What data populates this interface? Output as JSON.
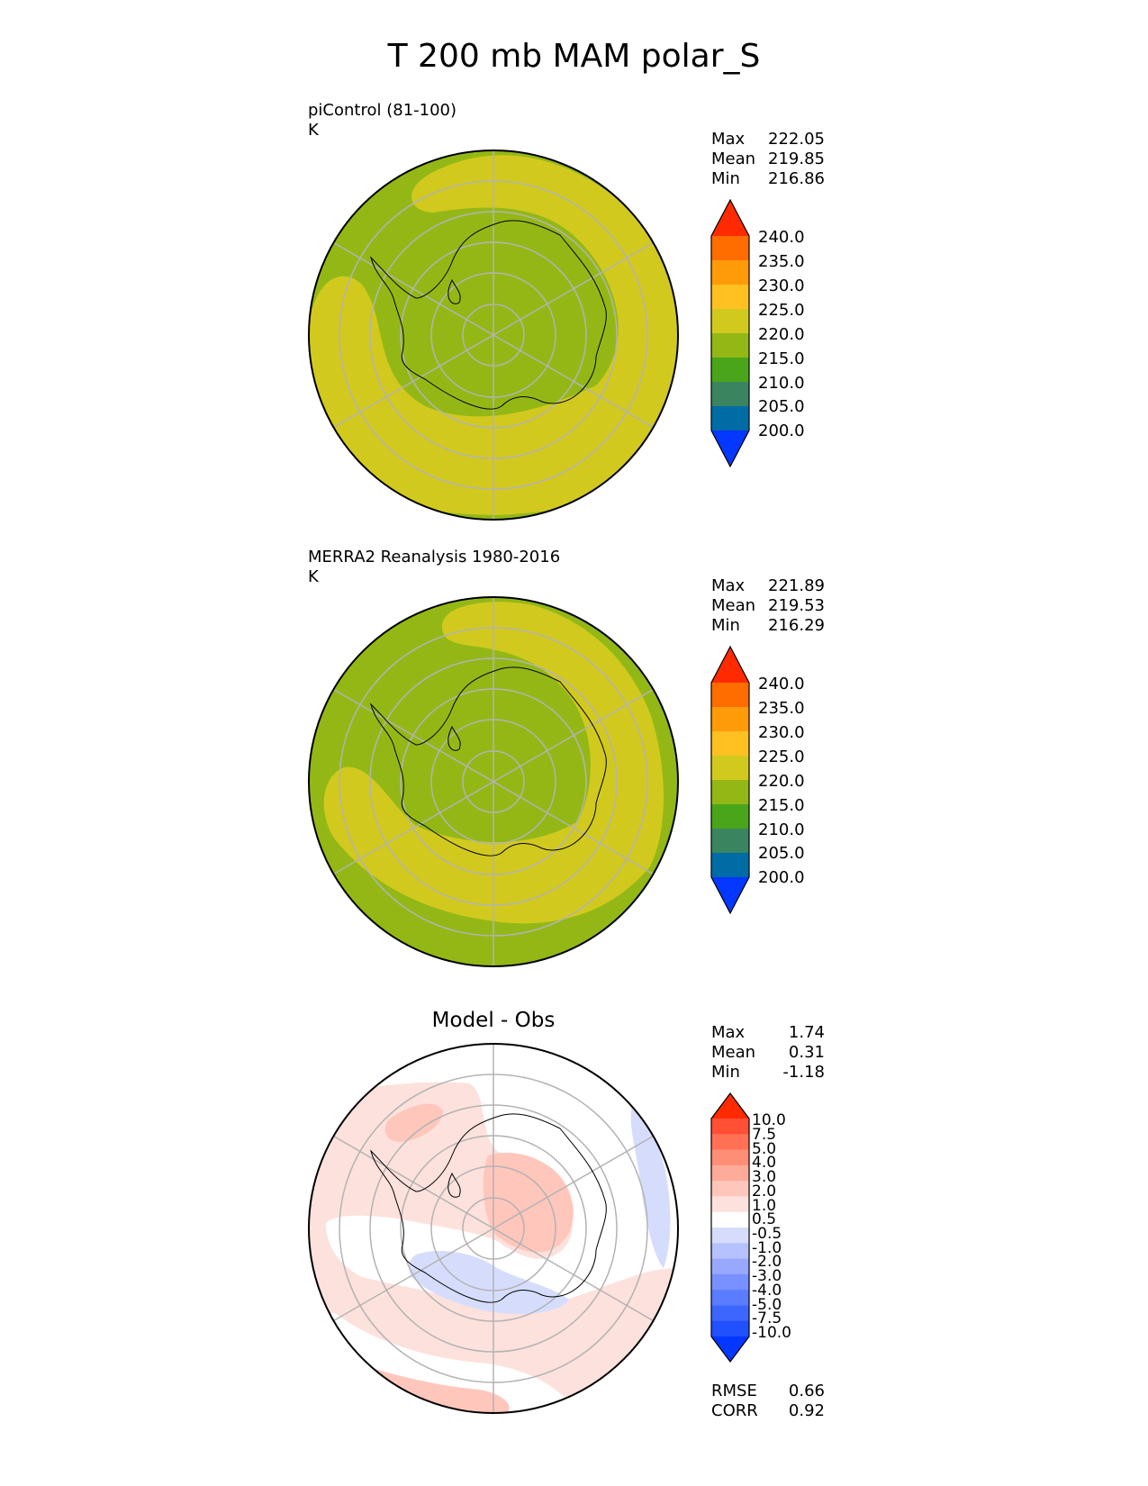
{
  "figure": {
    "title": "T 200 mb MAM polar_S",
    "colors": {
      "abs_levels": [
        "#0437ff",
        "#006ca6",
        "#3a8560",
        "#4aa51b",
        "#93b816",
        "#d2c91f",
        "#ffc022",
        "#ff9b09",
        "#ff6c00",
        "#ff2a00"
      ],
      "diff_levels": [
        "#0437ff",
        "#2150ff",
        "#3d66ff",
        "#5a7cff",
        "#7891ff",
        "#98a8ff",
        "#b6c1ff",
        "#d6ddfc",
        "#ffffff",
        "#fde1dc",
        "#ffc6bb",
        "#ffab99",
        "#ff8e76",
        "#ff7055",
        "#ff5036",
        "#ff2a00"
      ],
      "grid": "#b3b3b3",
      "coast": "#000000"
    }
  },
  "panels": [
    {
      "id": "model",
      "title": "piControl (81-100)",
      "units": "K",
      "stats": [
        {
          "label": "Max",
          "value": "222.05"
        },
        {
          "label": "Mean",
          "value": "219.85"
        },
        {
          "label": "Min",
          "value": "216.86"
        }
      ],
      "colorbar_ticks": [
        "240.0",
        "235.0",
        "230.0",
        "225.0",
        "220.0",
        "215.0",
        "210.0",
        "205.0",
        "200.0"
      ]
    },
    {
      "id": "obs",
      "title": "MERRA2 Reanalysis 1980-2016",
      "units": "K",
      "stats": [
        {
          "label": "Max",
          "value": "221.89"
        },
        {
          "label": "Mean",
          "value": "219.53"
        },
        {
          "label": "Min",
          "value": "216.29"
        }
      ],
      "colorbar_ticks": [
        "240.0",
        "235.0",
        "230.0",
        "225.0",
        "220.0",
        "215.0",
        "210.0",
        "205.0",
        "200.0"
      ]
    },
    {
      "id": "diff",
      "title": "Model - Obs",
      "stats": [
        {
          "label": "Max",
          "value": "1.74"
        },
        {
          "label": "Mean",
          "value": "0.31"
        },
        {
          "label": "Min",
          "value": "-1.18"
        }
      ],
      "colorbar_ticks": [
        "10.0",
        "7.5",
        "5.0",
        "4.0",
        "3.0",
        "2.0",
        "1.0",
        "0.5",
        "-0.5",
        "-1.0",
        "-2.0",
        "-3.0",
        "-4.0",
        "-5.0",
        "-7.5",
        "-10.0"
      ],
      "metrics": [
        {
          "label": "RMSE",
          "value": "0.66"
        },
        {
          "label": "CORR",
          "value": "0.92"
        }
      ]
    }
  ]
}
